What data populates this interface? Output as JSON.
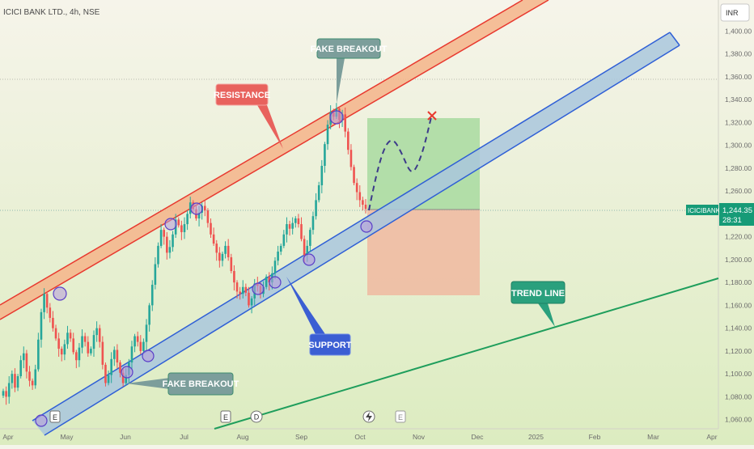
{
  "header": {
    "symbol_info": "ICICI BANK LTD., 4h, NSE",
    "currency": "INR"
  },
  "price_tag": {
    "ticker": "ICICIBANK",
    "price": "1,244.35",
    "countdown": "28:31"
  },
  "colors": {
    "background_top": "#f6f4ea",
    "background_bottom": "#dcecc0",
    "resistance_band": "#f5b489",
    "resistance_line": "#e8392f",
    "support_band": "#a9c7dd",
    "support_line": "#2f5fd6",
    "trend_line": "#1f9e5c",
    "candle_up": "#26a69a",
    "candle_down": "#ef5350",
    "profit_zone": "#a8dba0",
    "loss_zone": "#f0b9a0",
    "price_tag_bg": "#169b77",
    "projection": "#3c3a8a"
  },
  "annotations": {
    "resistance": "RESISTANCE",
    "support": "SUPPORT",
    "trend_line": "TREND LINE",
    "fake_breakout_top": "FAKE BREAKOUT",
    "fake_breakout_bottom": "FAKE BREAKOUT"
  },
  "event_markers": [
    "E",
    "E",
    "D",
    "E"
  ],
  "chart_data": {
    "type": "candlestick",
    "title": "ICICI BANK LTD., 4h, NSE",
    "xlabel": "",
    "ylabel": "",
    "x_ticks": [
      "Apr",
      "May",
      "Jun",
      "Jul",
      "Aug",
      "Sep",
      "Oct",
      "Nov",
      "Dec",
      "2025",
      "Feb",
      "Mar",
      "Apr"
    ],
    "y_ticks": [
      "1,060.00",
      "1,080.00",
      "1,100.00",
      "1,120.00",
      "1,140.00",
      "1,160.00",
      "1,180.00",
      "1,200.00",
      "1,220.00",
      "1,240.00",
      "1,260.00",
      "1,280.00",
      "1,300.00",
      "1,320.00",
      "1,340.00",
      "1,360.00",
      "1,380.00",
      "1,400.00"
    ],
    "ylim": [
      1052,
      1420
    ],
    "grid": false,
    "last_price": 1244.35,
    "series_close": [
      1085,
      1080,
      1092,
      1100,
      1088,
      1098,
      1112,
      1118,
      1102,
      1094,
      1090,
      1104,
      1130,
      1154,
      1170,
      1158,
      1149,
      1140,
      1131,
      1122,
      1117,
      1126,
      1136,
      1131,
      1119,
      1112,
      1123,
      1133,
      1128,
      1118,
      1122,
      1134,
      1140,
      1128,
      1108,
      1092,
      1099,
      1113,
      1121,
      1110,
      1101,
      1092,
      1099,
      1110,
      1124,
      1133,
      1128,
      1120,
      1128,
      1143,
      1160,
      1178,
      1196,
      1212,
      1226,
      1220,
      1206,
      1211,
      1222,
      1235,
      1230,
      1224,
      1231,
      1240,
      1250,
      1244,
      1236,
      1241,
      1247,
      1243,
      1232,
      1222,
      1214,
      1206,
      1199,
      1205,
      1212,
      1202,
      1190,
      1180,
      1172,
      1170,
      1176,
      1171,
      1160,
      1166,
      1179,
      1177,
      1170,
      1176,
      1185,
      1180,
      1188,
      1199,
      1207,
      1212,
      1222,
      1231,
      1227,
      1232,
      1236,
      1231,
      1218,
      1204,
      1212,
      1226,
      1238,
      1252,
      1265,
      1282,
      1301,
      1318,
      1329,
      1325,
      1332,
      1322,
      1327,
      1312,
      1296,
      1281,
      1267,
      1259,
      1252,
      1248,
      1244.35
    ],
    "resistance_channel": {
      "start": [
        "Apr",
        1155
      ],
      "end": [
        "Dec",
        1432
      ],
      "band_width": 20
    },
    "support_channel": {
      "start": [
        "Apr",
        1050
      ],
      "end": [
        "Mar",
        1400
      ],
      "band_width": 20
    },
    "trend_line": {
      "start": [
        "Aug",
        1027
      ],
      "end": [
        "Apr",
        1183
      ]
    },
    "trade_box": {
      "entry": 1244,
      "target": 1327,
      "stop": 1168
    },
    "projection_path": [
      1244,
      1300,
      1280,
      1325
    ]
  }
}
